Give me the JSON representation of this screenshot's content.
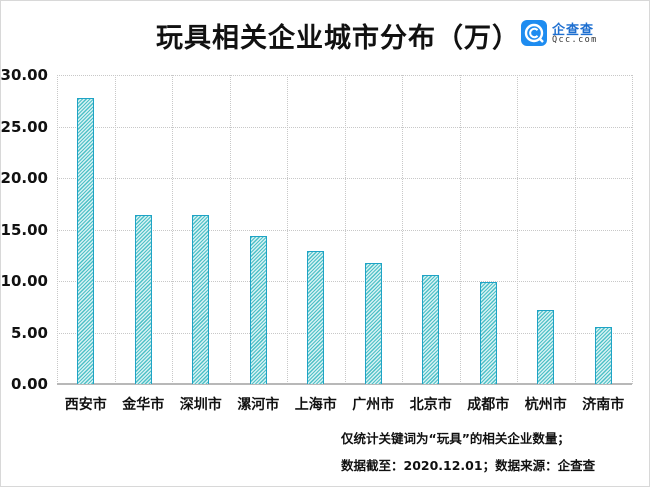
{
  "title": "玩具相关企业城市分布（万）",
  "logo": {
    "name_cn": "企查查",
    "name_en": "Qcc.com",
    "color": "#1e8cf0"
  },
  "chart_data": {
    "type": "bar",
    "title": "玩具相关企业城市分布（万）",
    "xlabel": "",
    "ylabel": "",
    "unit": "万",
    "categories": [
      "西安市",
      "金华市",
      "深圳市",
      "漯河市",
      "上海市",
      "广州市",
      "北京市",
      "成都市",
      "杭州市",
      "济南市"
    ],
    "values": [
      27.8,
      16.45,
      16.4,
      14.35,
      12.9,
      11.75,
      10.6,
      9.9,
      7.2,
      5.55
    ],
    "ylim": [
      0,
      30
    ],
    "yticks": [
      "0.00",
      "5.00",
      "10.00",
      "15.00",
      "20.00",
      "25.00",
      "30.00"
    ],
    "grid": true,
    "legend": null,
    "bar_color": "#4fc1c7",
    "bar_border_color": "#1fa3c6"
  },
  "notes": [
    "仅统计关键词为“玩具”的相关企业数量；",
    "数据截至：2020.12.01；数据来源：企查查"
  ]
}
